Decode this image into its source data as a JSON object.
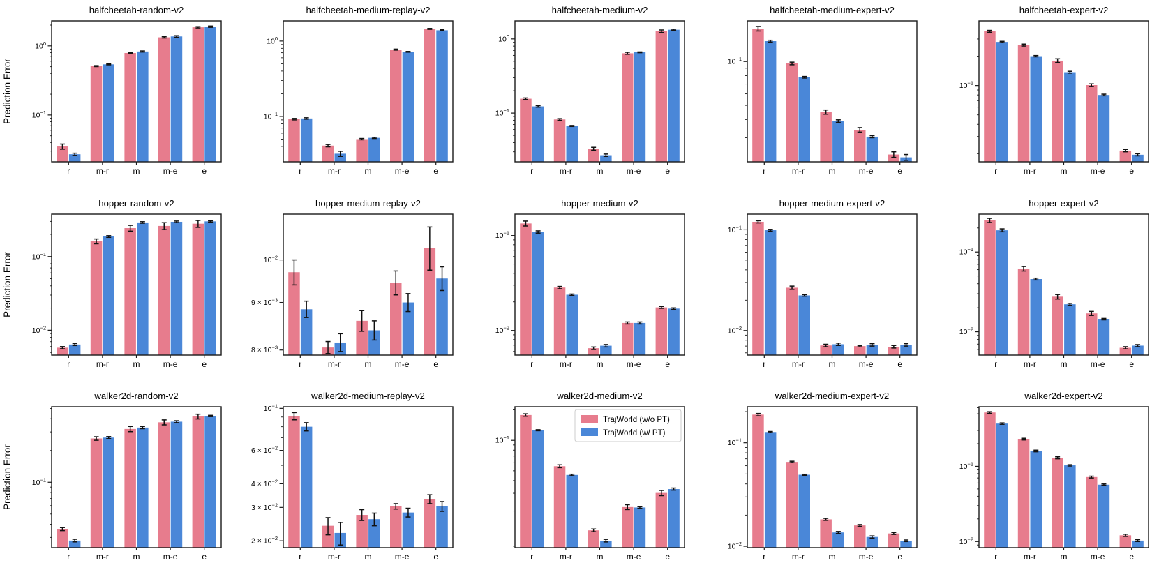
{
  "figure": {
    "ylabel": "Prediction Error",
    "categories": [
      "r",
      "m-r",
      "m",
      "m-e",
      "e"
    ],
    "colors": {
      "wo_pt": "#E77C8D",
      "w_pt": "#4A87D8",
      "error_bar": "#111111",
      "axis": "#1a1a1a",
      "legend_border": "#cccccc"
    },
    "legend": {
      "items": [
        {
          "label": "TrajWorld (w/o PT)",
          "color": "#E77C8D"
        },
        {
          "label": "TrajWorld (w/ PT)",
          "color": "#4A87D8"
        }
      ],
      "host_subplot": "walker2d-medium-v2",
      "position": "upper right"
    }
  },
  "chart_data": [
    {
      "type": "bar",
      "title": "halfcheetah-random-v2",
      "log_scale": true,
      "categories": [
        "r",
        "m-r",
        "m",
        "m-e",
        "e"
      ],
      "ylim": [
        0.021,
        2.3
      ],
      "yticks": [
        {
          "v": 1,
          "label": "10^0"
        },
        {
          "v": 0.1,
          "label": "10^-1"
        }
      ],
      "show_ylabel": true,
      "legend": false,
      "series": [
        {
          "name": "TrajWorld (w/o PT)",
          "values": [
            0.035,
            0.51,
            0.79,
            1.33,
            1.86
          ],
          "errors": [
            0.003,
            0.008,
            0.01,
            0.03,
            0.04
          ]
        },
        {
          "name": "TrajWorld (w/ PT)",
          "values": [
            0.027,
            0.54,
            0.83,
            1.37,
            1.9
          ],
          "errors": [
            0.001,
            0.008,
            0.015,
            0.035,
            0.04
          ]
        }
      ]
    },
    {
      "type": "bar",
      "title": "halfcheetah-medium-replay-v2",
      "log_scale": true,
      "categories": [
        "r",
        "m-r",
        "m",
        "m-e",
        "e"
      ],
      "ylim": [
        0.025,
        1.85
      ],
      "yticks": [
        {
          "v": 1,
          "label": "10^0"
        },
        {
          "v": 0.1,
          "label": "10^-1"
        }
      ],
      "show_ylabel": false,
      "legend": false,
      "series": [
        {
          "name": "TrajWorld (w/o PT)",
          "values": [
            0.092,
            0.041,
            0.05,
            0.77,
            1.45
          ],
          "errors": [
            0.002,
            0.0015,
            0.001,
            0.012,
            0.02
          ]
        },
        {
          "name": "TrajWorld (w/ PT)",
          "values": [
            0.094,
            0.032,
            0.052,
            0.72,
            1.39
          ],
          "errors": [
            0.002,
            0.0025,
            0.001,
            0.008,
            0.02
          ]
        }
      ]
    },
    {
      "type": "bar",
      "title": "halfcheetah-medium-v2",
      "log_scale": true,
      "categories": [
        "r",
        "m-r",
        "m",
        "m-e",
        "e"
      ],
      "ylim": [
        0.022,
        1.75
      ],
      "yticks": [
        {
          "v": 1,
          "label": "10^0"
        },
        {
          "v": 0.1,
          "label": "10^-1"
        }
      ],
      "show_ylabel": false,
      "legend": false,
      "series": [
        {
          "name": "TrajWorld (w/o PT)",
          "values": [
            0.156,
            0.082,
            0.033,
            0.64,
            1.27
          ],
          "errors": [
            0.004,
            0.002,
            0.0015,
            0.02,
            0.05
          ]
        },
        {
          "name": "TrajWorld (w/ PT)",
          "values": [
            0.123,
            0.067,
            0.027,
            0.66,
            1.33
          ],
          "errors": [
            0.003,
            0.001,
            0.001,
            0.008,
            0.025
          ]
        }
      ]
    },
    {
      "type": "bar",
      "title": "halfcheetah-medium-expert-v2",
      "log_scale": true,
      "categories": [
        "r",
        "m-r",
        "m",
        "m-e",
        "e"
      ],
      "ylim": [
        0.0205,
        0.19
      ],
      "yticks": [
        {
          "v": 0.1,
          "label": "10^-1"
        }
      ],
      "show_ylabel": false,
      "legend": false,
      "series": [
        {
          "name": "TrajWorld (w/o PT)",
          "values": [
            0.168,
            0.097,
            0.045,
            0.034,
            0.023
          ],
          "errors": [
            0.006,
            0.002,
            0.0015,
            0.0012,
            0.001
          ]
        },
        {
          "name": "TrajWorld (w/ PT)",
          "values": [
            0.138,
            0.078,
            0.039,
            0.0305,
            0.022
          ],
          "errors": [
            0.002,
            0.001,
            0.0008,
            0.0005,
            0.001
          ]
        }
      ]
    },
    {
      "type": "bar",
      "title": "halfcheetah-expert-v2",
      "log_scale": true,
      "categories": [
        "r",
        "m-r",
        "m",
        "m-e",
        "e"
      ],
      "ylim": [
        0.0165,
        0.46
      ],
      "yticks": [
        {
          "v": 0.1,
          "label": "10^-1"
        }
      ],
      "show_ylabel": false,
      "legend": false,
      "series": [
        {
          "name": "TrajWorld (w/o PT)",
          "values": [
            0.36,
            0.26,
            0.18,
            0.101,
            0.0215
          ],
          "errors": [
            0.008,
            0.006,
            0.008,
            0.003,
            0.0006
          ]
        },
        {
          "name": "TrajWorld (w/ PT)",
          "values": [
            0.28,
            0.2,
            0.137,
            0.08,
            0.0195
          ],
          "errors": [
            0.004,
            0.003,
            0.003,
            0.0015,
            0.0005
          ]
        }
      ]
    },
    {
      "type": "bar",
      "title": "hopper-random-v2",
      "log_scale": true,
      "categories": [
        "r",
        "m-r",
        "m",
        "m-e",
        "e"
      ],
      "ylim": [
        0.0046,
        0.376
      ],
      "yticks": [
        {
          "v": 0.1,
          "label": "10^-1"
        },
        {
          "v": 0.01,
          "label": "10^-2"
        }
      ],
      "show_ylabel": true,
      "legend": false,
      "series": [
        {
          "name": "TrajWorld (w/o PT)",
          "values": [
            0.0058,
            0.161,
            0.243,
            0.26,
            0.279
          ],
          "errors": [
            0.0002,
            0.012,
            0.022,
            0.028,
            0.03
          ]
        },
        {
          "name": "TrajWorld (w/ PT)",
          "values": [
            0.0064,
            0.187,
            0.29,
            0.296,
            0.3
          ],
          "errors": [
            0.0002,
            0.005,
            0.007,
            0.007,
            0.006
          ]
        }
      ]
    },
    {
      "type": "bar",
      "title": "hopper-medium-replay-v2",
      "log_scale": true,
      "categories": [
        "r",
        "m-r",
        "m",
        "m-e",
        "e"
      ],
      "ylim": [
        0.0079,
        0.0112
      ],
      "yticks": [
        {
          "v": 0.01,
          "label": "10^-2"
        },
        {
          "v": 0.009,
          "label": "9×10^-3"
        },
        {
          "v": 0.008,
          "label": "8×10^-3"
        }
      ],
      "show_ylabel": false,
      "legend": false,
      "series": [
        {
          "name": "TrajWorld (w/o PT)",
          "values": [
            0.0097,
            0.00805,
            0.0086,
            0.00945,
            0.0103
          ],
          "errors": [
            0.0003,
            0.00012,
            0.00022,
            0.00028,
            0.00055
          ]
        },
        {
          "name": "TrajWorld (w/ PT)",
          "values": [
            0.00885,
            0.00815,
            0.0084,
            0.009,
            0.00955
          ],
          "errors": [
            0.00018,
            0.00018,
            0.0002,
            0.0002,
            0.00028
          ]
        }
      ]
    },
    {
      "type": "bar",
      "title": "hopper-medium-v2",
      "log_scale": true,
      "categories": [
        "r",
        "m-r",
        "m",
        "m-e",
        "e"
      ],
      "ylim": [
        0.0055,
        0.168
      ],
      "yticks": [
        {
          "v": 0.1,
          "label": "10^-1"
        },
        {
          "v": 0.01,
          "label": "10^-2"
        }
      ],
      "show_ylabel": false,
      "legend": false,
      "series": [
        {
          "name": "TrajWorld (w/o PT)",
          "values": [
            0.134,
            0.0283,
            0.0065,
            0.012,
            0.0175
          ],
          "errors": [
            0.008,
            0.0008,
            0.0002,
            0.0003,
            0.0004
          ]
        },
        {
          "name": "TrajWorld (w/ PT)",
          "values": [
            0.109,
            0.0238,
            0.0069,
            0.012,
            0.017
          ],
          "errors": [
            0.003,
            0.0004,
            0.0002,
            0.0003,
            0.0003
          ]
        }
      ]
    },
    {
      "type": "bar",
      "title": "hopper-medium-expert-v2",
      "log_scale": true,
      "categories": [
        "r",
        "m-r",
        "m",
        "m-e",
        "e"
      ],
      "ylim": [
        0.0057,
        0.143
      ],
      "yticks": [
        {
          "v": 0.1,
          "label": "10^-1"
        },
        {
          "v": 0.01,
          "label": "10^-2"
        }
      ],
      "show_ylabel": false,
      "legend": false,
      "series": [
        {
          "name": "TrajWorld (w/o PT)",
          "values": [
            0.12,
            0.0266,
            0.0071,
            0.007,
            0.0069
          ],
          "errors": [
            0.003,
            0.001,
            0.0002,
            0.0001,
            0.0002
          ]
        },
        {
          "name": "TrajWorld (w/ PT)",
          "values": [
            0.099,
            0.0223,
            0.0073,
            0.0072,
            0.0072
          ],
          "errors": [
            0.002,
            0.0004,
            0.0002,
            0.0002,
            0.0002
          ]
        }
      ]
    },
    {
      "type": "bar",
      "title": "hopper-expert-v2",
      "log_scale": true,
      "categories": [
        "r",
        "m-r",
        "m",
        "m-e",
        "e"
      ],
      "ylim": [
        0.0051,
        0.298
      ],
      "yticks": [
        {
          "v": 0.1,
          "label": "10^-1"
        },
        {
          "v": 0.01,
          "label": "10^-2"
        }
      ],
      "show_ylabel": false,
      "legend": false,
      "series": [
        {
          "name": "TrajWorld (w/o PT)",
          "values": [
            0.249,
            0.0617,
            0.0275,
            0.017,
            0.0063
          ],
          "errors": [
            0.015,
            0.004,
            0.0018,
            0.001,
            0.0002
          ]
        },
        {
          "name": "TrajWorld (w/ PT)",
          "values": [
            0.187,
            0.0458,
            0.0221,
            0.0144,
            0.0067
          ],
          "errors": [
            0.008,
            0.0012,
            0.0006,
            0.0003,
            0.0002
          ]
        }
      ]
    },
    {
      "type": "bar",
      "title": "walker2d-random-v2",
      "log_scale": true,
      "categories": [
        "r",
        "m-r",
        "m",
        "m-e",
        "e"
      ],
      "ylim": [
        0.024,
        0.52
      ],
      "yticks": [
        {
          "v": 0.1,
          "label": "10^-1"
        }
      ],
      "show_ylabel": true,
      "legend": false,
      "series": [
        {
          "name": "TrajWorld (w/o PT)",
          "values": [
            0.036,
            0.26,
            0.32,
            0.37,
            0.42
          ],
          "errors": [
            0.0012,
            0.01,
            0.018,
            0.02,
            0.022
          ]
        },
        {
          "name": "TrajWorld (w/ PT)",
          "values": [
            0.028,
            0.265,
            0.33,
            0.375,
            0.425
          ],
          "errors": [
            0.0008,
            0.006,
            0.008,
            0.008,
            0.006
          ]
        }
      ]
    },
    {
      "type": "bar",
      "title": "walker2d-medium-replay-v2",
      "log_scale": true,
      "categories": [
        "r",
        "m-r",
        "m",
        "m-e",
        "e"
      ],
      "ylim": [
        0.0184,
        0.102
      ],
      "yticks": [
        {
          "v": 0.1,
          "label": "10^-1"
        },
        {
          "v": 0.06,
          "label": "6×10^-2"
        },
        {
          "v": 0.04,
          "label": "4×10^-2"
        },
        {
          "v": 0.03,
          "label": "3×10^-2"
        },
        {
          "v": 0.02,
          "label": "2×10^-2"
        }
      ],
      "show_ylabel": false,
      "legend": false,
      "series": [
        {
          "name": "TrajWorld (w/o PT)",
          "values": [
            0.091,
            0.024,
            0.0274,
            0.0304,
            0.0332
          ],
          "errors": [
            0.004,
            0.0025,
            0.0018,
            0.001,
            0.0018
          ]
        },
        {
          "name": "TrajWorld (w/ PT)",
          "values": [
            0.08,
            0.022,
            0.026,
            0.0282,
            0.0304
          ],
          "errors": [
            0.004,
            0.003,
            0.002,
            0.0015,
            0.0018
          ]
        }
      ]
    },
    {
      "type": "bar",
      "title": "walker2d-medium-v2",
      "log_scale": true,
      "categories": [
        "r",
        "m-r",
        "m",
        "m-e",
        "e"
      ],
      "ylim": [
        0.0087,
        0.215
      ],
      "yticks": [
        {
          "v": 0.1,
          "label": "10^-1"
        }
      ],
      "show_ylabel": false,
      "legend": true,
      "series": [
        {
          "name": "TrajWorld (w/o PT)",
          "values": [
            0.178,
            0.0555,
            0.0129,
            0.0219,
            0.0302
          ],
          "errors": [
            0.005,
            0.0018,
            0.0004,
            0.0012,
            0.0018
          ]
        },
        {
          "name": "TrajWorld (w/ PT)",
          "values": [
            0.126,
            0.0455,
            0.0102,
            0.0217,
            0.033
          ],
          "errors": [
            0.0015,
            0.0008,
            0.0003,
            0.0004,
            0.0008
          ]
        }
      ]
    },
    {
      "type": "bar",
      "title": "walker2d-medium-expert-v2",
      "log_scale": true,
      "categories": [
        "r",
        "m-r",
        "m",
        "m-e",
        "e"
      ],
      "ylim": [
        0.0097,
        0.223
      ],
      "yticks": [
        {
          "v": 0.1,
          "label": "10^-1"
        },
        {
          "v": 0.01,
          "label": "10^-2"
        }
      ],
      "show_ylabel": false,
      "legend": false,
      "series": [
        {
          "name": "TrajWorld (w/o PT)",
          "values": [
            0.187,
            0.0653,
            0.0182,
            0.0159,
            0.0133
          ],
          "errors": [
            0.005,
            0.001,
            0.0004,
            0.0003,
            0.0003
          ]
        },
        {
          "name": "TrajWorld (w/ PT)",
          "values": [
            0.127,
            0.0491,
            0.0136,
            0.0123,
            0.0113
          ],
          "errors": [
            0.0015,
            0.0006,
            0.0003,
            0.0003,
            0.0002
          ]
        }
      ]
    },
    {
      "type": "bar",
      "title": "walker2d-expert-v2",
      "log_scale": true,
      "categories": [
        "r",
        "m-r",
        "m",
        "m-e",
        "e"
      ],
      "ylim": [
        0.0083,
        0.62
      ],
      "yticks": [
        {
          "v": 0.1,
          "label": "10^-1"
        },
        {
          "v": 0.01,
          "label": "10^-2"
        }
      ],
      "show_ylabel": false,
      "legend": false,
      "series": [
        {
          "name": "TrajWorld (w/o PT)",
          "values": [
            0.52,
            0.23,
            0.13,
            0.072,
            0.0121
          ],
          "errors": [
            0.012,
            0.006,
            0.004,
            0.002,
            0.0004
          ]
        },
        {
          "name": "TrajWorld (w/ PT)",
          "values": [
            0.37,
            0.16,
            0.103,
            0.057,
            0.0103
          ],
          "errors": [
            0.008,
            0.004,
            0.002,
            0.0012,
            0.0003
          ]
        }
      ]
    }
  ]
}
